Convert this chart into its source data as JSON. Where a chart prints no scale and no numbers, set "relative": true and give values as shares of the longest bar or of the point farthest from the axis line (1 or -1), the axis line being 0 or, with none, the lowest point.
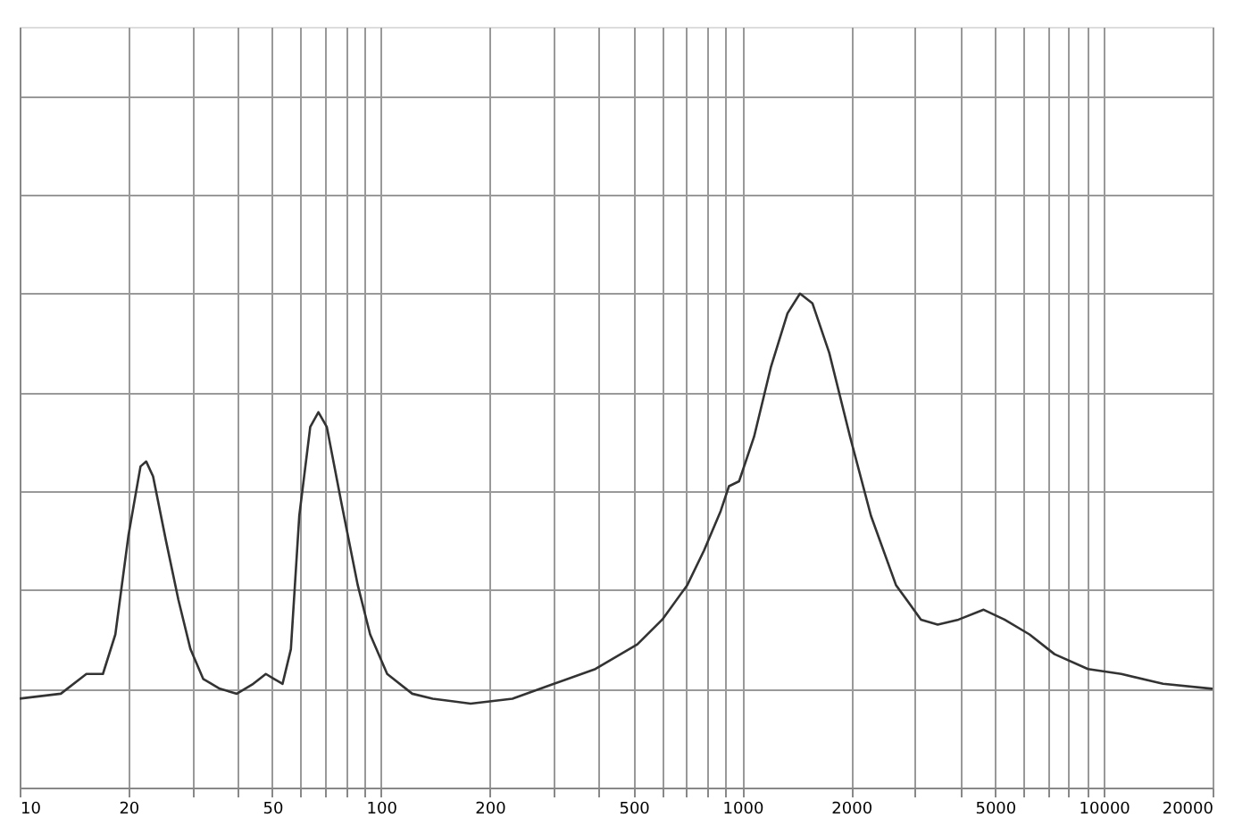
{
  "chart_data": {
    "type": "line",
    "relative": true,
    "log": "x",
    "grid": true,
    "marker": "none",
    "line_style": "solid",
    "xlim": [
      10,
      20000
    ],
    "xticks": [
      10,
      20,
      {
        "value": 30,
        "label": null
      },
      {
        "value": 40,
        "label": null
      },
      50,
      {
        "value": 60,
        "label": null
      },
      {
        "value": 70,
        "label": null
      },
      {
        "value": 80,
        "label": null
      },
      {
        "value": 90,
        "label": null
      },
      100,
      200,
      {
        "value": 300,
        "label": null
      },
      {
        "value": 400,
        "label": null
      },
      500,
      {
        "value": 600,
        "label": null
      },
      {
        "value": 700,
        "label": null
      },
      {
        "value": 800,
        "label": null
      },
      {
        "value": 900,
        "label": null
      },
      1000,
      2000,
      {
        "value": 3000,
        "label": null
      },
      {
        "value": 4000,
        "label": null
      },
      5000,
      {
        "value": 6000,
        "label": null
      },
      {
        "value": 7000,
        "label": null
      },
      {
        "value": 8000,
        "label": null
      },
      {
        "value": 9000,
        "label": null
      },
      10000,
      20000
    ],
    "x": [
      10,
      13,
      15.3,
      17,
      18.4,
      20,
      21.6,
      22.4,
      23.4,
      25.4,
      27.5,
      29.7,
      32.2,
      35.8,
      39.9,
      44.3,
      48,
      50.6,
      53.4,
      56.3,
      59.4,
      63.7,
      67.1,
      70.8,
      77.5,
      86.2,
      93.3,
      104,
      122,
      139,
      177,
      231,
      301,
      392,
      512,
      600,
      704,
      783,
      871,
      918,
      979,
      1077,
      1198,
      1333,
      1443,
      1563,
      1739,
      1986,
      2269,
      2660,
      3120,
      3471,
      3963,
      4651,
      5312,
      6230,
      7308,
      9041,
      11180,
      14590,
      20000
    ],
    "series": [
      {
        "color": "#333333",
        "values": [
          0.18,
          0.19,
          0.23,
          0.23,
          0.31,
          0.51,
          0.65,
          0.66,
          0.63,
          0.5,
          0.38,
          0.28,
          0.22,
          0.2,
          0.19,
          0.21,
          0.23,
          0.22,
          0.21,
          0.28,
          0.55,
          0.73,
          0.76,
          0.73,
          0.58,
          0.41,
          0.31,
          0.23,
          0.19,
          0.18,
          0.17,
          0.18,
          0.21,
          0.24,
          0.29,
          0.34,
          0.41,
          0.48,
          0.56,
          0.61,
          0.62,
          0.71,
          0.85,
          0.96,
          1,
          0.98,
          0.88,
          0.71,
          0.55,
          0.41,
          0.34,
          0.33,
          0.34,
          0.36,
          0.34,
          0.31,
          0.27,
          0.24,
          0.23,
          0.21,
          0.2
        ]
      }
    ]
  }
}
